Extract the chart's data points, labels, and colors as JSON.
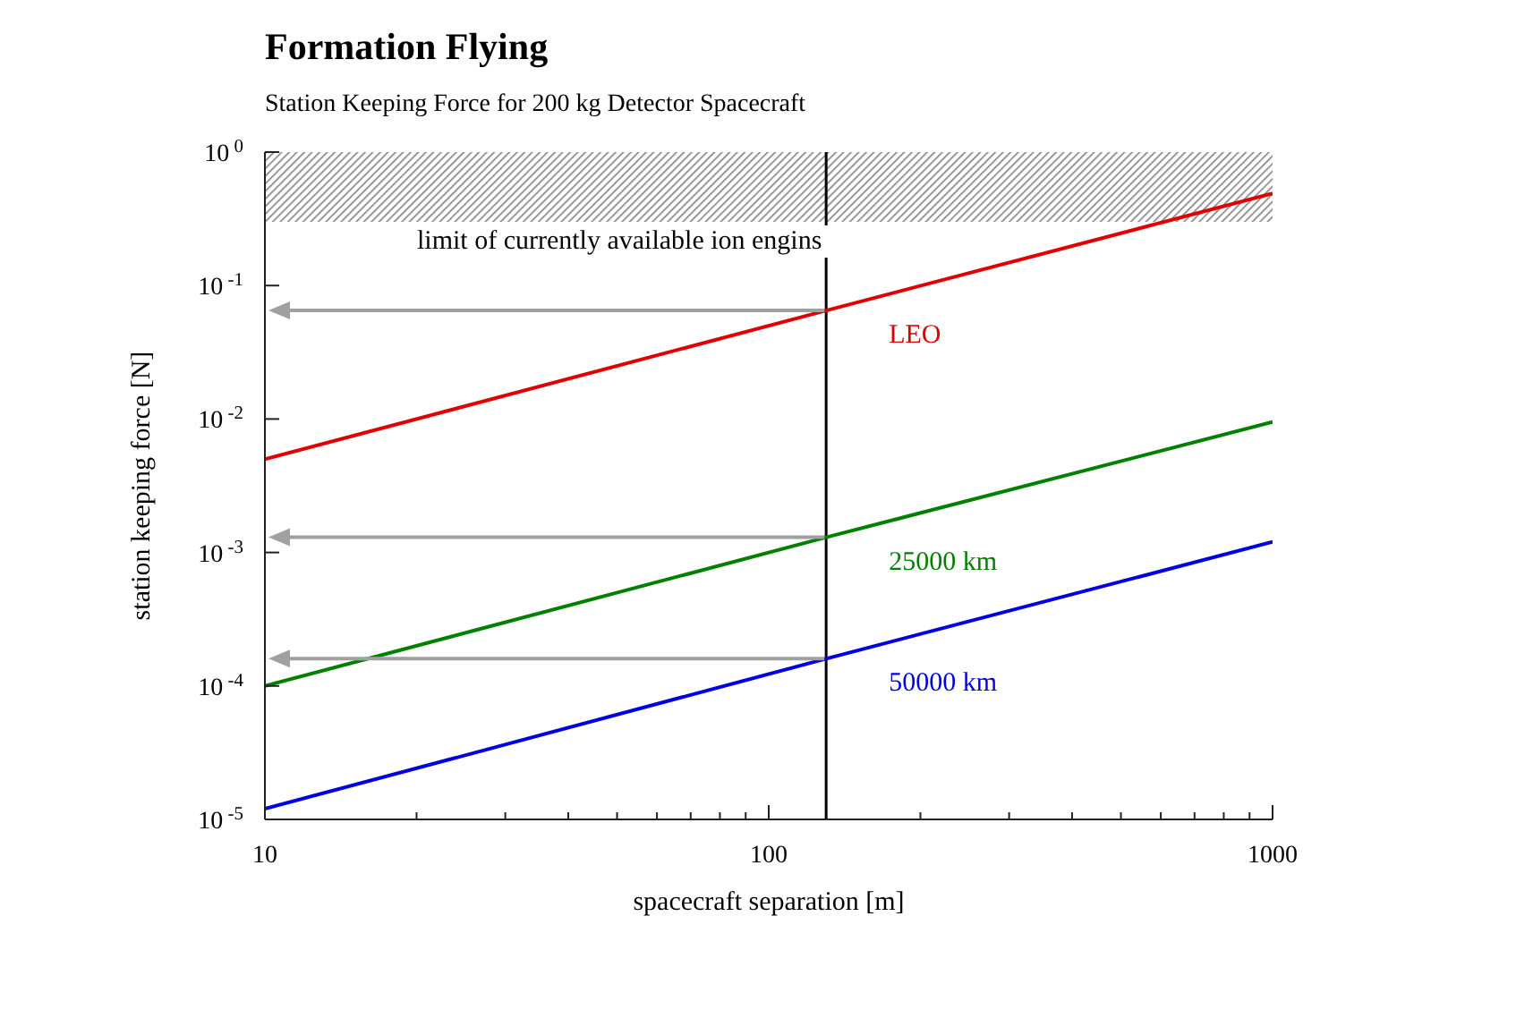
{
  "chart_data": {
    "type": "line",
    "title": "Formation Flying",
    "subtitle": "Station Keeping Force for 200 kg Detector Spacecraft",
    "xlabel": "spacecraft separation [m]",
    "ylabel": "station keeping force [N]",
    "log": "xy",
    "xlim": [
      10,
      1000
    ],
    "ylim": [
      1e-05,
      1
    ],
    "xticks": [
      10,
      {
        "value": 20,
        "label": null
      },
      {
        "value": 30,
        "label": null
      },
      {
        "value": 40,
        "label": null
      },
      {
        "value": 50,
        "label": null
      },
      {
        "value": 60,
        "label": null
      },
      {
        "value": 70,
        "label": null
      },
      {
        "value": 80,
        "label": null
      },
      {
        "value": 90,
        "label": null
      },
      100,
      {
        "value": 200,
        "label": null
      },
      {
        "value": 300,
        "label": null
      },
      {
        "value": 400,
        "label": null
      },
      {
        "value": 500,
        "label": null
      },
      {
        "value": 600,
        "label": null
      },
      {
        "value": 700,
        "label": null
      },
      {
        "value": 800,
        "label": null
      },
      {
        "value": 900,
        "label": null
      },
      1000
    ],
    "yticks": [
      {
        "value": 1e-05,
        "label": "10$^{-5}$"
      },
      {
        "value": 0.0001,
        "label": "10$^{-4}$"
      },
      {
        "value": 0.001,
        "label": "10$^{-3}$"
      },
      {
        "value": 0.01,
        "label": "10$^{-2}$"
      },
      {
        "value": 0.1,
        "label": "10$^{-1}$"
      },
      {
        "value": 1,
        "label": "10$^{0}$"
      }
    ],
    "series": [
      {
        "name": "LEO",
        "color": "#e00000",
        "x": [
          10,
          130,
          1000
        ],
        "values": [
          0.005,
          0.065,
          0.49
        ]
      },
      {
        "name": "25000 km",
        "color": "#008000",
        "x": [
          10,
          130,
          1000
        ],
        "values": [
          0.0001,
          0.0013,
          0.0095
        ]
      },
      {
        "name": "50000 km",
        "color": "#0000e0",
        "x": [
          10,
          130,
          1000
        ],
        "values": [
          1.2e-05,
          0.00016,
          0.0012
        ]
      }
    ],
    "ref_lines": [
      {
        "axis": "x",
        "value": 130,
        "color": "#000000"
      }
    ],
    "bands": [
      {
        "axis": "y",
        "from": 0.3,
        "to": 1,
        "label": "limit of currently available ion engins",
        "color": "#808080"
      }
    ]
  }
}
